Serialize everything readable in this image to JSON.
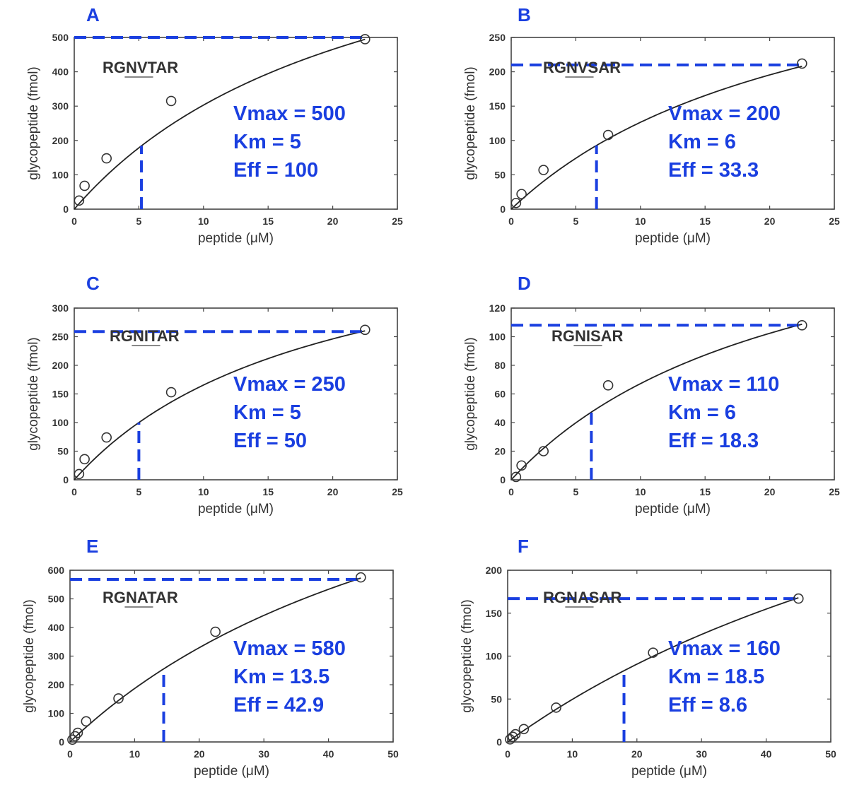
{
  "chart_data": [
    {
      "panel": "A",
      "type": "scatter",
      "peptide": "RGNVTAR",
      "xlabel": "peptide (μM)",
      "ylabel": "glycopeptide (fmol)",
      "xlim": [
        0,
        25
      ],
      "ylim": [
        0,
        500
      ],
      "xticks": [
        0,
        5,
        10,
        15,
        20,
        25
      ],
      "yticks": [
        0,
        100,
        200,
        300,
        400,
        500
      ],
      "points": [
        {
          "x": 0.375,
          "y": 25
        },
        {
          "x": 0.8,
          "y": 68
        },
        {
          "x": 2.5,
          "y": 148
        },
        {
          "x": 7.5,
          "y": 315
        },
        {
          "x": 22.5,
          "y": 495
        }
      ],
      "fit_curve": "michaelis-menten",
      "fit_vmax_curve": 1000,
      "fit_km_curve": 23.0,
      "vmax_line": 500,
      "km_line": 5.2,
      "params": [
        "Vmax = 500",
        "Km = 5",
        "Eff = 100"
      ],
      "colors": {
        "guides": "#1a3fe0",
        "curve": "#222222"
      }
    },
    {
      "panel": "B",
      "type": "scatter",
      "peptide": "RGNVSAR",
      "xlabel": "peptide (μM)",
      "ylabel": "glycopeptide (fmol)",
      "xlim": [
        0,
        25
      ],
      "ylim": [
        0,
        250
      ],
      "xticks": [
        0,
        5,
        10,
        15,
        20,
        25
      ],
      "yticks": [
        0,
        50,
        100,
        150,
        200,
        250
      ],
      "points": [
        {
          "x": 0.375,
          "y": 9
        },
        {
          "x": 0.8,
          "y": 22
        },
        {
          "x": 2.5,
          "y": 57
        },
        {
          "x": 7.5,
          "y": 108
        },
        {
          "x": 22.5,
          "y": 212
        }
      ],
      "fit_curve": "michaelis-menten",
      "fit_vmax_curve": 430,
      "fit_km_curve": 24.0,
      "vmax_line": 210,
      "km_line": 6.6,
      "params": [
        "Vmax = 200",
        "Km = 6",
        "Eff = 33.3"
      ],
      "colors": {
        "guides": "#1a3fe0",
        "curve": "#222222"
      }
    },
    {
      "panel": "C",
      "type": "scatter",
      "peptide": "RGNITAR",
      "xlabel": "peptide (μM)",
      "ylabel": "glycopeptide (fmol)",
      "xlim": [
        0,
        25
      ],
      "ylim": [
        0,
        300
      ],
      "xticks": [
        0,
        5,
        10,
        15,
        20,
        25
      ],
      "yticks": [
        0,
        50,
        100,
        150,
        200,
        250,
        300
      ],
      "points": [
        {
          "x": 0.375,
          "y": 10
        },
        {
          "x": 0.8,
          "y": 36
        },
        {
          "x": 2.5,
          "y": 74
        },
        {
          "x": 7.5,
          "y": 153
        },
        {
          "x": 22.5,
          "y": 262
        }
      ],
      "fit_curve": "michaelis-menten",
      "fit_vmax_curve": 480,
      "fit_km_curve": 19.0,
      "vmax_line": 259,
      "km_line": 5.0,
      "params": [
        "Vmax = 250",
        "Km = 5",
        "Eff = 50"
      ],
      "colors": {
        "guides": "#1a3fe0",
        "curve": "#222222"
      }
    },
    {
      "panel": "D",
      "type": "scatter",
      "peptide": "RGNISAR",
      "xlabel": "peptide (μM)",
      "ylabel": "glycopeptide (fmol)",
      "xlim": [
        0,
        25
      ],
      "ylim": [
        0,
        120
      ],
      "xticks": [
        0,
        5,
        10,
        15,
        20,
        25
      ],
      "yticks": [
        0,
        20,
        40,
        60,
        80,
        100,
        120
      ],
      "points": [
        {
          "x": 0.375,
          "y": 2
        },
        {
          "x": 0.8,
          "y": 10
        },
        {
          "x": 2.5,
          "y": 20
        },
        {
          "x": 7.5,
          "y": 66
        },
        {
          "x": 22.5,
          "y": 108
        }
      ],
      "fit_curve": "michaelis-menten",
      "fit_vmax_curve": 215,
      "fit_km_curve": 22.0,
      "vmax_line": 108,
      "km_line": 6.2,
      "params": [
        "Vmax = 110",
        "Km = 6",
        "Eff = 18.3"
      ],
      "colors": {
        "guides": "#1a3fe0",
        "curve": "#222222"
      }
    },
    {
      "panel": "E",
      "type": "scatter",
      "peptide": "RGNATAR",
      "xlabel": "peptide (μM)",
      "ylabel": "glycopeptide (fmol)",
      "xlim": [
        0,
        50
      ],
      "ylim": [
        0,
        600
      ],
      "xticks": [
        0,
        10,
        20,
        30,
        40,
        50
      ],
      "yticks": [
        0,
        100,
        200,
        300,
        400,
        500,
        600
      ],
      "points": [
        {
          "x": 0.375,
          "y": 8
        },
        {
          "x": 0.8,
          "y": 20
        },
        {
          "x": 1.2,
          "y": 32
        },
        {
          "x": 2.5,
          "y": 72
        },
        {
          "x": 7.5,
          "y": 152
        },
        {
          "x": 22.5,
          "y": 385
        },
        {
          "x": 45,
          "y": 575
        }
      ],
      "fit_curve": "michaelis-menten",
      "fit_vmax_curve": 1400,
      "fit_km_curve": 65.0,
      "vmax_line": 568,
      "km_line": 14.5,
      "params": [
        "Vmax = 580",
        "Km = 13.5",
        "Eff = 42.9"
      ],
      "colors": {
        "guides": "#1a3fe0",
        "curve": "#222222"
      }
    },
    {
      "panel": "F",
      "type": "scatter",
      "peptide": "RGNASAR",
      "xlabel": "peptide (μM)",
      "ylabel": "glycopeptide (fmol)",
      "xlim": [
        0,
        50
      ],
      "ylim": [
        0,
        200
      ],
      "xticks": [
        0,
        10,
        20,
        30,
        40,
        50
      ],
      "yticks": [
        0,
        50,
        100,
        150,
        200
      ],
      "points": [
        {
          "x": 0.375,
          "y": 3
        },
        {
          "x": 0.8,
          "y": 6
        },
        {
          "x": 1.2,
          "y": 9
        },
        {
          "x": 2.5,
          "y": 15
        },
        {
          "x": 7.5,
          "y": 40
        },
        {
          "x": 22.5,
          "y": 104
        },
        {
          "x": 45,
          "y": 167
        }
      ],
      "fit_curve": "michaelis-menten",
      "fit_vmax_curve": 530,
      "fit_km_curve": 97.0,
      "vmax_line": 167,
      "km_line": 18.0,
      "params": [
        "Vmax = 160",
        "Km = 18.5",
        "Eff = 8.6"
      ],
      "colors": {
        "guides": "#1a3fe0",
        "curve": "#222222"
      }
    }
  ]
}
